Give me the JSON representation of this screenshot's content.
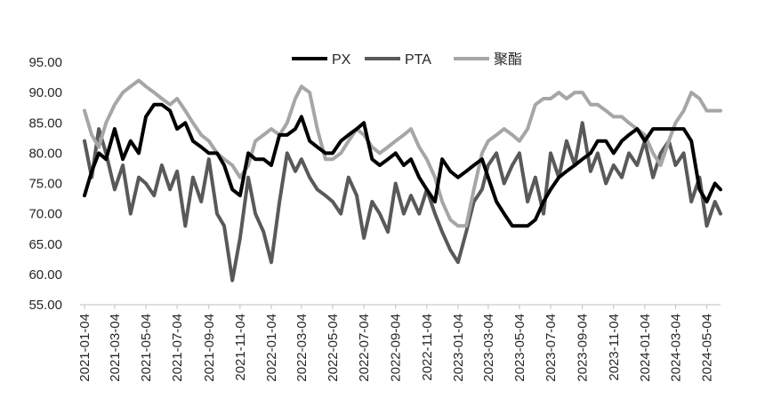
{
  "chart_data": {
    "type": "line",
    "title": "",
    "xlabel": "",
    "ylabel": "",
    "ylim": [
      55,
      95
    ],
    "yticks": [
      "95.00",
      "90.00",
      "85.00",
      "80.00",
      "75.00",
      "70.00",
      "65.00",
      "60.00",
      "55.00"
    ],
    "grid": false,
    "legend_position": "top",
    "x_ticks": [
      "2021-01-04",
      "2021-03-04",
      "2021-05-04",
      "2021-07-04",
      "2021-09-04",
      "2021-11-04",
      "2022-01-04",
      "2022-03-04",
      "2022-05-04",
      "2022-07-04",
      "2022-09-04",
      "2022-11-04",
      "2023-01-04",
      "2023-03-04",
      "2023-05-04",
      "2023-07-04",
      "2023-09-04",
      "2023-11-04",
      "2024-01-04",
      "2024-03-04",
      "2024-05-04"
    ],
    "x_end": "2024-05-31",
    "series": [
      {
        "name": "PX",
        "color": "#000000",
        "points": [
          [
            "2021-01-04",
            73
          ],
          [
            "2021-01-18",
            77
          ],
          [
            "2021-02-01",
            80
          ],
          [
            "2021-02-15",
            79
          ],
          [
            "2021-03-04",
            84
          ],
          [
            "2021-03-20",
            79
          ],
          [
            "2021-04-04",
            82
          ],
          [
            "2021-04-20",
            80
          ],
          [
            "2021-05-04",
            86
          ],
          [
            "2021-05-20",
            88
          ],
          [
            "2021-06-04",
            88
          ],
          [
            "2021-06-20",
            87
          ],
          [
            "2021-07-04",
            84
          ],
          [
            "2021-07-20",
            85
          ],
          [
            "2021-08-04",
            82
          ],
          [
            "2021-08-20",
            81
          ],
          [
            "2021-09-04",
            80
          ],
          [
            "2021-09-20",
            80
          ],
          [
            "2021-10-04",
            78
          ],
          [
            "2021-10-20",
            74
          ],
          [
            "2021-11-04",
            73
          ],
          [
            "2021-11-20",
            80
          ],
          [
            "2021-12-04",
            79
          ],
          [
            "2021-12-20",
            79
          ],
          [
            "2022-01-04",
            78
          ],
          [
            "2022-01-20",
            83
          ],
          [
            "2022-02-04",
            83
          ],
          [
            "2022-02-20",
            84
          ],
          [
            "2022-03-04",
            86
          ],
          [
            "2022-03-20",
            82
          ],
          [
            "2022-04-04",
            81
          ],
          [
            "2022-04-20",
            80
          ],
          [
            "2022-05-04",
            80
          ],
          [
            "2022-05-20",
            82
          ],
          [
            "2022-06-04",
            83
          ],
          [
            "2022-06-20",
            84
          ],
          [
            "2022-07-04",
            85
          ],
          [
            "2022-07-20",
            79
          ],
          [
            "2022-08-04",
            78
          ],
          [
            "2022-08-20",
            79
          ],
          [
            "2022-09-04",
            80
          ],
          [
            "2022-09-20",
            78
          ],
          [
            "2022-10-04",
            79
          ],
          [
            "2022-10-20",
            76
          ],
          [
            "2022-11-04",
            74
          ],
          [
            "2022-11-20",
            72
          ],
          [
            "2022-12-04",
            79
          ],
          [
            "2022-12-20",
            77
          ],
          [
            "2023-01-04",
            76
          ],
          [
            "2023-01-20",
            77
          ],
          [
            "2023-02-04",
            78
          ],
          [
            "2023-02-20",
            79
          ],
          [
            "2023-03-04",
            76
          ],
          [
            "2023-03-20",
            72
          ],
          [
            "2023-04-04",
            70
          ],
          [
            "2023-04-20",
            68
          ],
          [
            "2023-05-04",
            68
          ],
          [
            "2023-05-20",
            68
          ],
          [
            "2023-06-04",
            69
          ],
          [
            "2023-06-20",
            72
          ],
          [
            "2023-07-04",
            74
          ],
          [
            "2023-07-20",
            76
          ],
          [
            "2023-08-04",
            77
          ],
          [
            "2023-08-20",
            78
          ],
          [
            "2023-09-04",
            79
          ],
          [
            "2023-09-20",
            80
          ],
          [
            "2023-10-04",
            82
          ],
          [
            "2023-10-20",
            82
          ],
          [
            "2023-11-04",
            80
          ],
          [
            "2023-11-20",
            82
          ],
          [
            "2023-12-04",
            83
          ],
          [
            "2023-12-20",
            84
          ],
          [
            "2024-01-04",
            82
          ],
          [
            "2024-01-20",
            84
          ],
          [
            "2024-02-04",
            84
          ],
          [
            "2024-02-20",
            84
          ],
          [
            "2024-03-04",
            84
          ],
          [
            "2024-03-20",
            84
          ],
          [
            "2024-04-04",
            82
          ],
          [
            "2024-04-20",
            74
          ],
          [
            "2024-05-04",
            72
          ],
          [
            "2024-05-20",
            75
          ],
          [
            "2024-05-31",
            74
          ]
        ]
      },
      {
        "name": "PTA",
        "color": "#595959",
        "points": [
          [
            "2021-01-04",
            82
          ],
          [
            "2021-01-18",
            76
          ],
          [
            "2021-02-01",
            84
          ],
          [
            "2021-02-15",
            80
          ],
          [
            "2021-03-04",
            74
          ],
          [
            "2021-03-20",
            78
          ],
          [
            "2021-04-04",
            70
          ],
          [
            "2021-04-20",
            76
          ],
          [
            "2021-05-04",
            75
          ],
          [
            "2021-05-20",
            73
          ],
          [
            "2021-06-04",
            78
          ],
          [
            "2021-06-20",
            74
          ],
          [
            "2021-07-04",
            77
          ],
          [
            "2021-07-20",
            68
          ],
          [
            "2021-08-04",
            76
          ],
          [
            "2021-08-20",
            72
          ],
          [
            "2021-09-04",
            79
          ],
          [
            "2021-09-20",
            70
          ],
          [
            "2021-10-04",
            68
          ],
          [
            "2021-10-20",
            59
          ],
          [
            "2021-11-04",
            66
          ],
          [
            "2021-11-20",
            76
          ],
          [
            "2021-12-04",
            70
          ],
          [
            "2021-12-20",
            67
          ],
          [
            "2022-01-04",
            62
          ],
          [
            "2022-01-20",
            72
          ],
          [
            "2022-02-04",
            80
          ],
          [
            "2022-02-20",
            77
          ],
          [
            "2022-03-04",
            79
          ],
          [
            "2022-03-20",
            76
          ],
          [
            "2022-04-04",
            74
          ],
          [
            "2022-04-20",
            73
          ],
          [
            "2022-05-04",
            72
          ],
          [
            "2022-05-20",
            70
          ],
          [
            "2022-06-04",
            76
          ],
          [
            "2022-06-20",
            73
          ],
          [
            "2022-07-04",
            66
          ],
          [
            "2022-07-20",
            72
          ],
          [
            "2022-08-04",
            70
          ],
          [
            "2022-08-20",
            67
          ],
          [
            "2022-09-04",
            75
          ],
          [
            "2022-09-20",
            70
          ],
          [
            "2022-10-04",
            73
          ],
          [
            "2022-10-20",
            70
          ],
          [
            "2022-11-04",
            74
          ],
          [
            "2022-11-20",
            70
          ],
          [
            "2022-12-04",
            67
          ],
          [
            "2022-12-20",
            64
          ],
          [
            "2023-01-04",
            62
          ],
          [
            "2023-01-20",
            67
          ],
          [
            "2023-02-04",
            72
          ],
          [
            "2023-02-20",
            74
          ],
          [
            "2023-03-04",
            78
          ],
          [
            "2023-03-20",
            80
          ],
          [
            "2023-04-04",
            75
          ],
          [
            "2023-04-20",
            78
          ],
          [
            "2023-05-04",
            80
          ],
          [
            "2023-05-20",
            72
          ],
          [
            "2023-06-04",
            76
          ],
          [
            "2023-06-20",
            70
          ],
          [
            "2023-07-04",
            80
          ],
          [
            "2023-07-20",
            76
          ],
          [
            "2023-08-04",
            82
          ],
          [
            "2023-08-20",
            78
          ],
          [
            "2023-09-04",
            85
          ],
          [
            "2023-09-20",
            77
          ],
          [
            "2023-10-04",
            80
          ],
          [
            "2023-10-20",
            75
          ],
          [
            "2023-11-04",
            78
          ],
          [
            "2023-11-20",
            76
          ],
          [
            "2023-12-04",
            80
          ],
          [
            "2023-12-20",
            78
          ],
          [
            "2024-01-04",
            82
          ],
          [
            "2024-01-20",
            76
          ],
          [
            "2024-02-04",
            80
          ],
          [
            "2024-02-20",
            82
          ],
          [
            "2024-03-04",
            78
          ],
          [
            "2024-03-20",
            80
          ],
          [
            "2024-04-04",
            72
          ],
          [
            "2024-04-20",
            76
          ],
          [
            "2024-05-04",
            68
          ],
          [
            "2024-05-20",
            72
          ],
          [
            "2024-05-31",
            70
          ]
        ]
      },
      {
        "name": "聚酯",
        "color": "#a6a6a6",
        "points": [
          [
            "2021-01-04",
            87
          ],
          [
            "2021-01-18",
            83
          ],
          [
            "2021-02-01",
            81
          ],
          [
            "2021-02-15",
            85
          ],
          [
            "2021-03-04",
            88
          ],
          [
            "2021-03-20",
            90
          ],
          [
            "2021-04-04",
            91
          ],
          [
            "2021-04-20",
            92
          ],
          [
            "2021-05-04",
            91
          ],
          [
            "2021-05-20",
            90
          ],
          [
            "2021-06-04",
            89
          ],
          [
            "2021-06-20",
            88
          ],
          [
            "2021-07-04",
            89
          ],
          [
            "2021-07-20",
            87
          ],
          [
            "2021-08-04",
            85
          ],
          [
            "2021-08-20",
            83
          ],
          [
            "2021-09-04",
            82
          ],
          [
            "2021-09-20",
            80
          ],
          [
            "2021-10-04",
            79
          ],
          [
            "2021-10-20",
            78
          ],
          [
            "2021-11-04",
            76
          ],
          [
            "2021-11-20",
            78
          ],
          [
            "2021-12-04",
            82
          ],
          [
            "2021-12-20",
            83
          ],
          [
            "2022-01-04",
            84
          ],
          [
            "2022-01-20",
            83
          ],
          [
            "2022-02-04",
            85
          ],
          [
            "2022-02-20",
            89
          ],
          [
            "2022-03-04",
            91
          ],
          [
            "2022-03-20",
            90
          ],
          [
            "2022-04-04",
            84
          ],
          [
            "2022-04-20",
            79
          ],
          [
            "2022-05-04",
            79
          ],
          [
            "2022-05-20",
            80
          ],
          [
            "2022-06-04",
            82
          ],
          [
            "2022-06-20",
            84
          ],
          [
            "2022-07-04",
            83
          ],
          [
            "2022-07-20",
            81
          ],
          [
            "2022-08-04",
            80
          ],
          [
            "2022-08-20",
            81
          ],
          [
            "2022-09-04",
            82
          ],
          [
            "2022-09-20",
            83
          ],
          [
            "2022-10-04",
            84
          ],
          [
            "2022-10-20",
            81
          ],
          [
            "2022-11-04",
            79
          ],
          [
            "2022-11-20",
            76
          ],
          [
            "2022-12-04",
            72
          ],
          [
            "2022-12-20",
            69
          ],
          [
            "2023-01-04",
            68
          ],
          [
            "2023-01-20",
            68
          ],
          [
            "2023-02-04",
            74
          ],
          [
            "2023-02-20",
            80
          ],
          [
            "2023-03-04",
            82
          ],
          [
            "2023-03-20",
            83
          ],
          [
            "2023-04-04",
            84
          ],
          [
            "2023-04-20",
            83
          ],
          [
            "2023-05-04",
            82
          ],
          [
            "2023-05-20",
            84
          ],
          [
            "2023-06-04",
            88
          ],
          [
            "2023-06-20",
            89
          ],
          [
            "2023-07-04",
            89
          ],
          [
            "2023-07-20",
            90
          ],
          [
            "2023-08-04",
            89
          ],
          [
            "2023-08-20",
            90
          ],
          [
            "2023-09-04",
            90
          ],
          [
            "2023-09-20",
            88
          ],
          [
            "2023-10-04",
            88
          ],
          [
            "2023-10-20",
            87
          ],
          [
            "2023-11-04",
            86
          ],
          [
            "2023-11-20",
            86
          ],
          [
            "2023-12-04",
            85
          ],
          [
            "2023-12-20",
            84
          ],
          [
            "2024-01-04",
            83
          ],
          [
            "2024-01-20",
            80
          ],
          [
            "2024-02-04",
            78
          ],
          [
            "2024-02-20",
            82
          ],
          [
            "2024-03-04",
            85
          ],
          [
            "2024-03-20",
            87
          ],
          [
            "2024-04-04",
            90
          ],
          [
            "2024-04-20",
            89
          ],
          [
            "2024-05-04",
            87
          ],
          [
            "2024-05-20",
            87
          ],
          [
            "2024-05-31",
            87
          ]
        ]
      }
    ]
  }
}
